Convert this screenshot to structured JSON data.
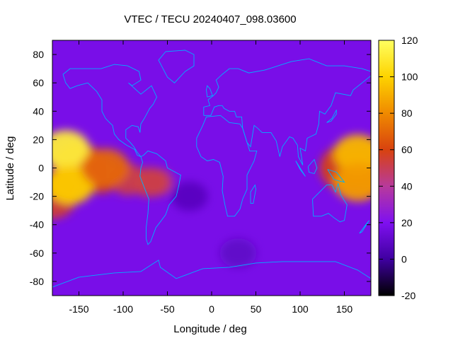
{
  "chart_data": {
    "type": "heatmap",
    "title": "VTEC / TECU 20240407_098.03600",
    "xlabel": "Longitude / deg",
    "ylabel": "Latitude / deg",
    "xlim": [
      -180,
      180
    ],
    "ylim": [
      -90,
      90
    ],
    "x_ticks": [
      -150,
      -100,
      -50,
      0,
      50,
      100,
      150
    ],
    "y_ticks": [
      80,
      60,
      40,
      20,
      0,
      -20,
      -40,
      -60,
      -80
    ],
    "colorbar": {
      "range": [
        -20,
        120
      ],
      "ticks": [
        120,
        100,
        80,
        60,
        40,
        20,
        0,
        -20
      ],
      "palette": [
        "#000000",
        "#3f00a0",
        "#7f10f0",
        "#b83a9b",
        "#d8420f",
        "#f08a00",
        "#fdd300",
        "#ffff60"
      ]
    },
    "coastline_color": "#00b0ff",
    "background_level": 18,
    "features": [
      {
        "name": "equatorial-peak-pacific-north",
        "lon": -165,
        "lat": 13,
        "value": 112
      },
      {
        "name": "equatorial-peak-pacific-south",
        "lon": -160,
        "lat": -12,
        "value": 98
      },
      {
        "name": "pacific-anomaly-crest",
        "lon": -120,
        "lat": 0,
        "value": 70
      },
      {
        "name": "equatorial-band-americas",
        "lon": -70,
        "lat": -10,
        "value": 52
      },
      {
        "name": "equatorial-peak-western-pacific",
        "lon": 165,
        "lat": 10,
        "value": 92
      },
      {
        "name": "equatorial-peak-australia",
        "lon": 165,
        "lat": -10,
        "value": 85
      },
      {
        "name": "atlantic-minimum",
        "lon": -25,
        "lat": -20,
        "value": 8
      },
      {
        "name": "south-atlantic-low",
        "lon": 30,
        "lat": -60,
        "value": 10
      }
    ]
  }
}
